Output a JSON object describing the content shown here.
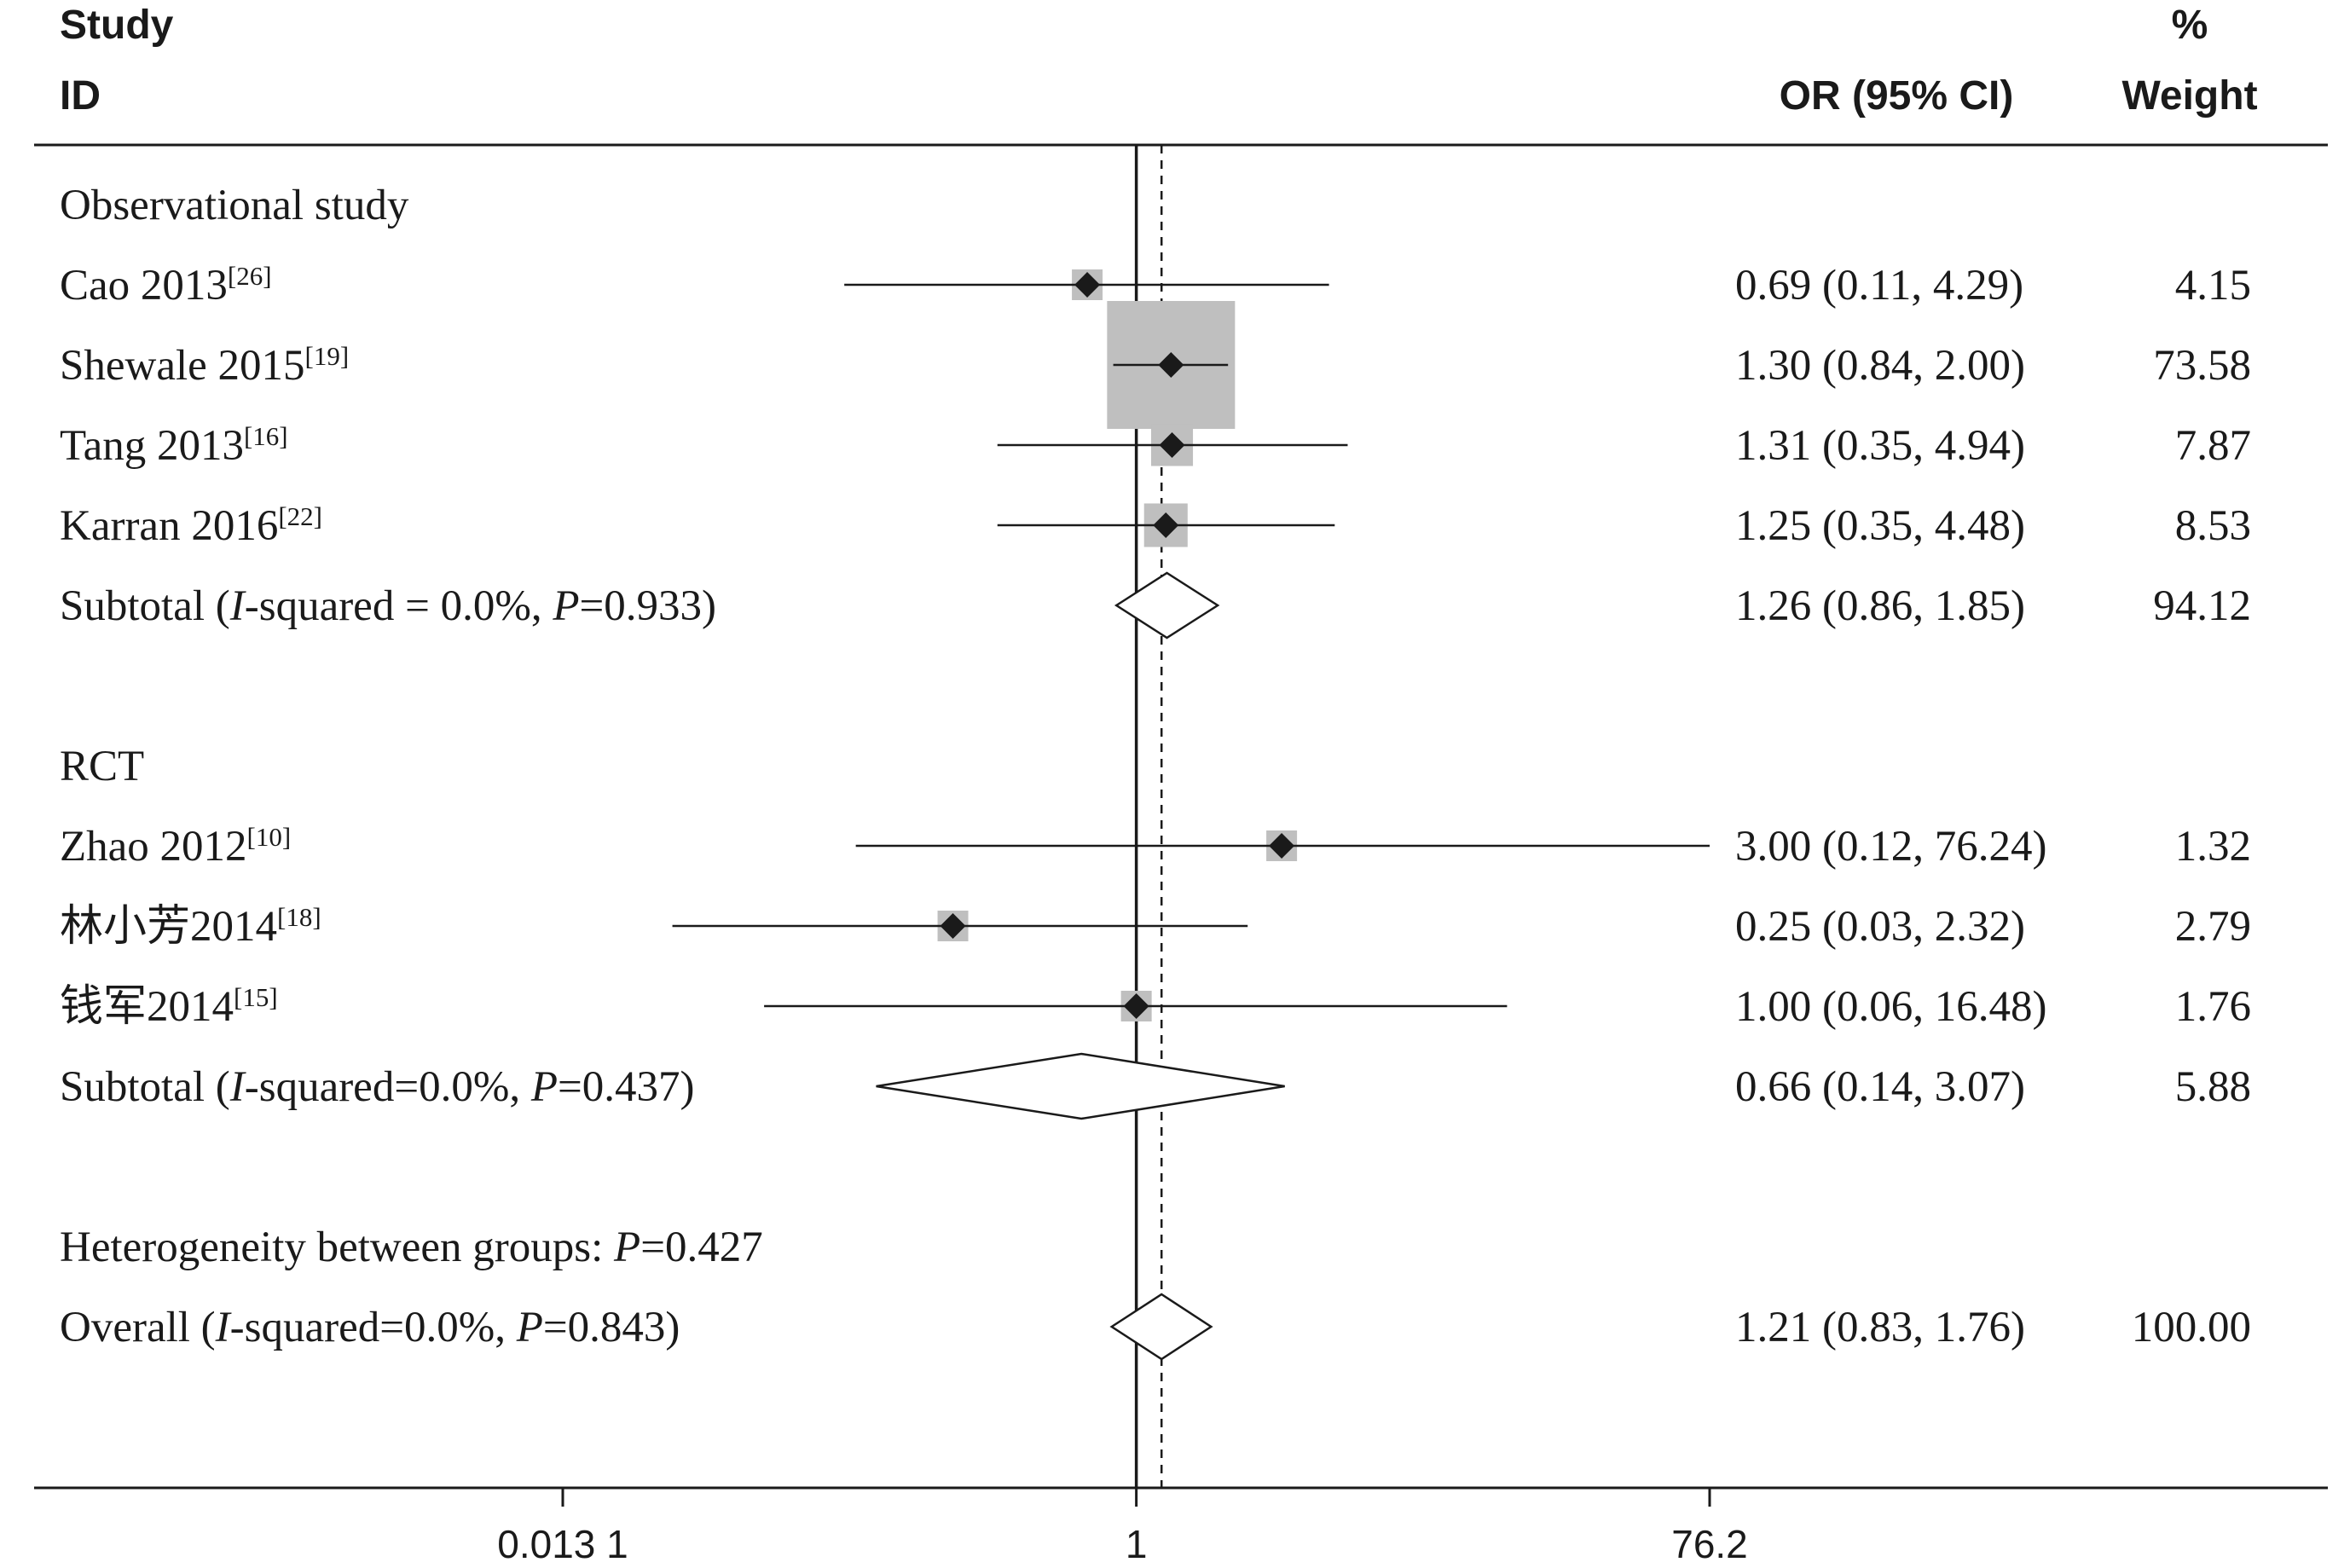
{
  "header": {
    "study_line1": "Study",
    "study_line2": "ID",
    "or_label": "OR (95% CI)",
    "weight_line1": "%",
    "weight_line2": "Weight"
  },
  "chart_data": {
    "type": "forest",
    "measure": "OR",
    "x_scale": "log",
    "xlim": [
      0.0131,
      76.2
    ],
    "ticks": [
      {
        "value": 0.0131,
        "label": "0.013 1"
      },
      {
        "value": 1,
        "label": "1"
      },
      {
        "value": 76.2,
        "label": "76.2"
      }
    ],
    "null_line": 1,
    "overall_line": 1.21,
    "colors": {
      "box": "#bfbfbf",
      "marker": "#1a1a1a",
      "line": "#1a1a1a"
    },
    "rows": [
      {
        "kind": "group",
        "label": "Observational study"
      },
      {
        "kind": "study",
        "name": "Cao 2013",
        "ref": "[26]",
        "or": 0.69,
        "lo": 0.11,
        "hi": 4.29,
        "ci_text": "0.69 (0.11, 4.29)",
        "weight": 4.15,
        "weight_text": "4.15"
      },
      {
        "kind": "study",
        "name": "Shewale 2015",
        "ref": "[19]",
        "or": 1.3,
        "lo": 0.84,
        "hi": 2.0,
        "ci_text": "1.30 (0.84, 2.00)",
        "weight": 73.58,
        "weight_text": "73.58"
      },
      {
        "kind": "study",
        "name": "Tang 2013",
        "ref": "[16]",
        "or": 1.31,
        "lo": 0.35,
        "hi": 4.94,
        "ci_text": "1.31 (0.35, 4.94)",
        "weight": 7.87,
        "weight_text": "7.87"
      },
      {
        "kind": "study",
        "name": "Karran 2016",
        "ref": "[22]",
        "or": 1.25,
        "lo": 0.35,
        "hi": 4.48,
        "ci_text": "1.25 (0.35, 4.48)",
        "weight": 8.53,
        "weight_text": "8.53"
      },
      {
        "kind": "subtotal",
        "text_a": "Subtotal  (",
        "i_sym": "I",
        "text_b": "-squared = 0.0%, ",
        "p_sym": "P",
        "text_c": "=0.933)",
        "or": 1.26,
        "lo": 0.86,
        "hi": 1.85,
        "ci_text": "1.26 (0.86, 1.85)",
        "weight_text": "94.12"
      },
      {
        "kind": "blank"
      },
      {
        "kind": "group",
        "label": "RCT"
      },
      {
        "kind": "study",
        "name": "Zhao 2012",
        "ref": "[10]",
        "or": 3.0,
        "lo": 0.12,
        "hi": 76.24,
        "ci_text": "3.00 (0.12, 76.24)",
        "weight": 1.32,
        "weight_text": "1.32",
        "arrow": true
      },
      {
        "kind": "study",
        "name": "林小芳2014",
        "ref": "[18]",
        "or": 0.25,
        "lo": 0.03,
        "hi": 2.32,
        "ci_text": "0.25 (0.03, 2.32)",
        "weight": 2.79,
        "weight_text": "2.79"
      },
      {
        "kind": "study",
        "name": "钱军2014",
        "ref": "[15]",
        "or": 1.0,
        "lo": 0.06,
        "hi": 16.48,
        "ci_text": "1.00 (0.06, 16.48)",
        "weight": 1.76,
        "weight_text": "1.76"
      },
      {
        "kind": "subtotal",
        "text_a": "Subtotal  (",
        "i_sym": "I",
        "text_b": "-squared=0.0%, ",
        "p_sym": "P",
        "text_c": "=0.437)",
        "or": 0.66,
        "lo": 0.14,
        "hi": 3.07,
        "ci_text": "0.66 (0.14, 3.07)",
        "weight_text": "5.88"
      },
      {
        "kind": "blank"
      },
      {
        "kind": "note",
        "text_a": "Heterogeneity between groups: ",
        "p_sym": "P",
        "text_c": "=0.427"
      },
      {
        "kind": "overall",
        "text_a": "Overall  (",
        "i_sym": "I",
        "text_b": "-squared=0.0%, ",
        "p_sym": "P",
        "text_c": "=0.843)",
        "or": 1.21,
        "lo": 0.83,
        "hi": 1.76,
        "ci_text": "1.21 (0.83, 1.76)",
        "weight_text": "100.00"
      }
    ]
  }
}
